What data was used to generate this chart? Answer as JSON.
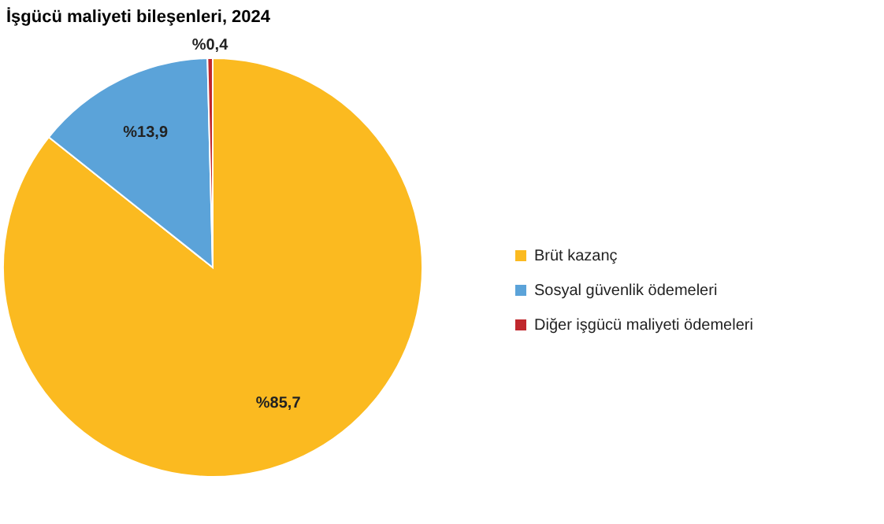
{
  "chart_data": {
    "type": "pie",
    "title": "İşgücü maliyeti bileşenleri, 2024",
    "categories": [
      "Brüt kazanç",
      "Sosyal güvenlik ödemeleri",
      "Diğer işgücü maliyeti ödemeleri"
    ],
    "values": [
      85.7,
      13.9,
      0.4
    ],
    "colors": [
      "#fbba20",
      "#5ba3d9",
      "#c0282d"
    ],
    "value_labels": [
      "%85,7",
      "%13,9",
      "%0,4"
    ],
    "legend": "right"
  }
}
